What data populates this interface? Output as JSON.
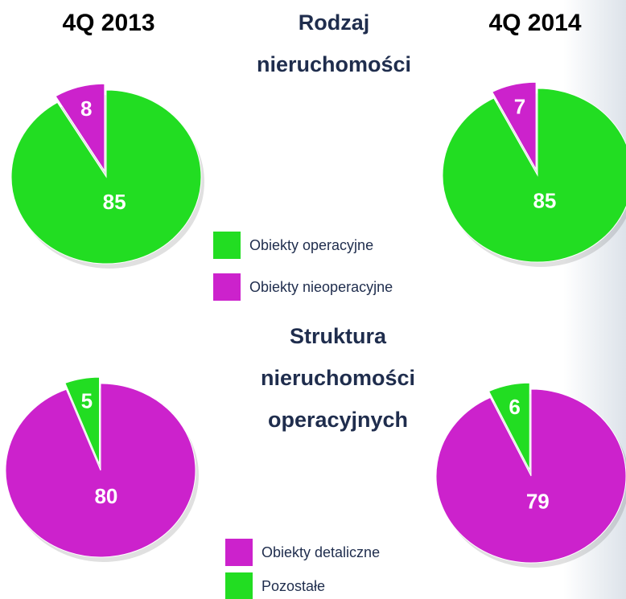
{
  "chart_data": [
    {
      "type": "pie",
      "title": [
        "Rodzaj",
        "nieruchomości"
      ],
      "categories": [
        "Obiekty operacyjne",
        "Obiekty nieoperacyjne"
      ],
      "colors": [
        "#22dd22",
        "#cc22cc"
      ],
      "series": [
        {
          "name": "4Q 2013",
          "values": [
            85,
            8
          ]
        },
        {
          "name": "4Q 2014",
          "values": [
            85,
            7
          ]
        }
      ]
    },
    {
      "type": "pie",
      "title": [
        "Struktura",
        "nieruchomości",
        "operacyjnych"
      ],
      "categories": [
        "Obiekty detaliczne",
        "Pozostałe"
      ],
      "colors": [
        "#cc22cc",
        "#22dd22"
      ],
      "series": [
        {
          "values": [
            80,
            5
          ]
        },
        {
          "values": [
            79,
            6
          ]
        }
      ]
    }
  ]
}
